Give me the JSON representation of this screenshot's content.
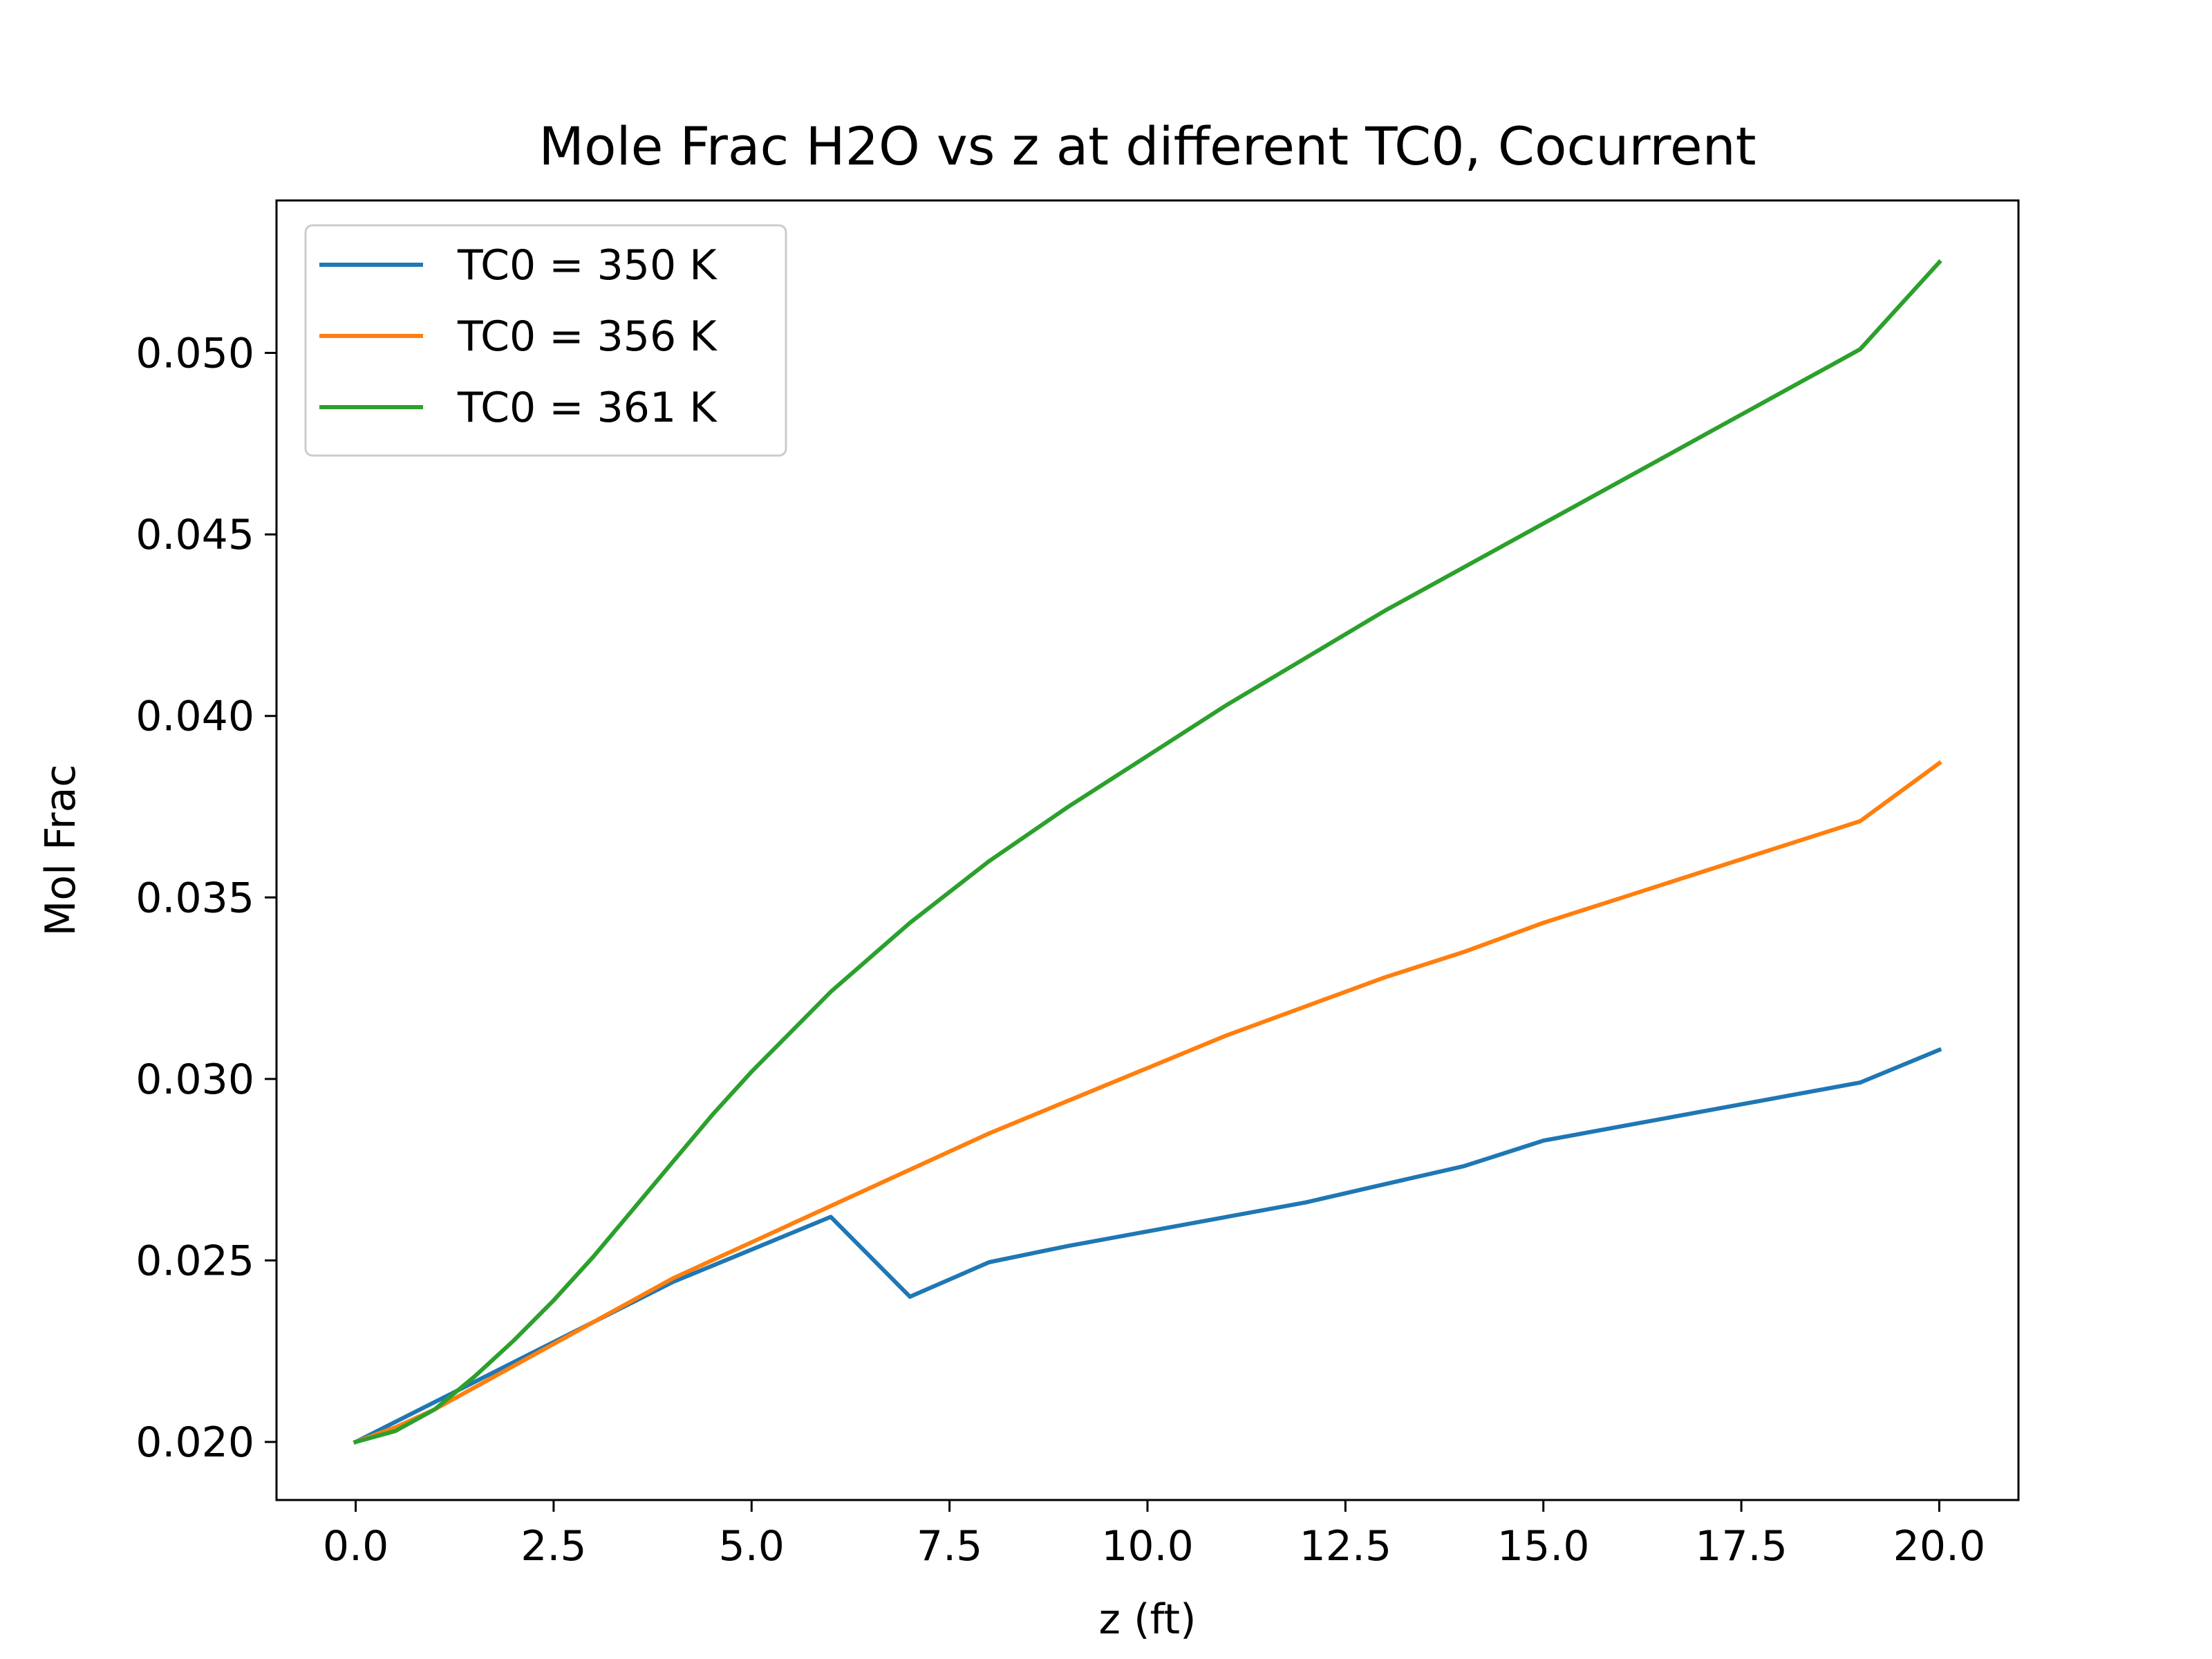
{
  "chart_data": {
    "type": "line",
    "title": "Mole Frac H2O vs z at different TC0, Cocurrent",
    "xlabel": "z (ft)",
    "ylabel": "Mol Frac",
    "xlim": [
      -1.0,
      21.0
    ],
    "ylim": [
      0.0184,
      0.0542
    ],
    "x_ticks": [
      0.0,
      2.5,
      5.0,
      7.5,
      10.0,
      12.5,
      15.0,
      17.5,
      20.0
    ],
    "x_tick_labels": [
      "0.0",
      "2.5",
      "5.0",
      "7.5",
      "10.0",
      "12.5",
      "15.0",
      "17.5",
      "20.0"
    ],
    "y_ticks": [
      0.02,
      0.025,
      0.03,
      0.035,
      0.04,
      0.045,
      0.05
    ],
    "y_tick_labels": [
      "0.020",
      "0.025",
      "0.030",
      "0.035",
      "0.040",
      "0.045",
      "0.050"
    ],
    "grid": false,
    "legend_position": "upper-left",
    "x": [
      0,
      0.5,
      1,
      1.5,
      2,
      2.5,
      3,
      3.5,
      4,
      4.5,
      5,
      6,
      7,
      8,
      9,
      10,
      11,
      12,
      13,
      14,
      15,
      16,
      17,
      18,
      19,
      20
    ],
    "series": [
      {
        "name": "TC0 = 350 K",
        "color": "#1f77b4",
        "values": [
          0.02,
          0.02055,
          0.0211,
          0.02165,
          0.0222,
          0.02275,
          0.0233,
          0.02385,
          0.0244,
          0.02485,
          0.0253,
          0.0262,
          0.024,
          0.02495,
          0.0254,
          0.0258,
          0.0262,
          0.0266,
          0.0271,
          0.0276,
          0.0283,
          0.0287,
          0.0291,
          0.0295,
          0.0299,
          0.0308
        ]
      },
      {
        "name": "TC0 = 356 K",
        "color": "#ff7f0e",
        "values": [
          0.02,
          0.0204,
          0.0209,
          0.0215,
          0.0221,
          0.0227,
          0.0233,
          0.0239,
          0.0245,
          0.025,
          0.0255,
          0.0265,
          0.0275,
          0.0285,
          0.0294,
          0.0303,
          0.0312,
          0.032,
          0.0328,
          0.0335,
          0.0343,
          0.035,
          0.0357,
          0.0364,
          0.0371,
          0.0387
        ]
      },
      {
        "name": "TC0 = 361 K",
        "color": "#2ca02c",
        "values": [
          0.02,
          0.0203,
          0.0209,
          0.0218,
          0.0228,
          0.0239,
          0.0251,
          0.0264,
          0.0277,
          0.029,
          0.0302,
          0.0324,
          0.0343,
          0.036,
          0.0375,
          0.0389,
          0.0403,
          0.0416,
          0.0429,
          0.0441,
          0.0453,
          0.0465,
          0.0477,
          0.0489,
          0.0501,
          0.0525
        ]
      }
    ]
  }
}
